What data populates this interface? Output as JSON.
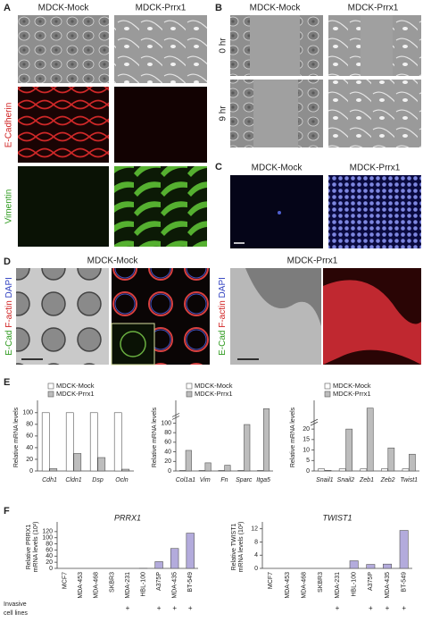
{
  "panels": {
    "A": {
      "label": "A",
      "columns": [
        "MDCK-Mock",
        "MDCK-Prrx1"
      ],
      "rows": [
        "E-Cadherin",
        "Vimentin"
      ]
    },
    "B": {
      "label": "B",
      "columns": [
        "MDCK-Mock",
        "MDCK-Prrx1"
      ],
      "rows": [
        "0 hr",
        "9 hr"
      ]
    },
    "C": {
      "label": "C",
      "columns": [
        "MDCK-Mock",
        "MDCK-Prrx1"
      ]
    },
    "D": {
      "label": "D",
      "columns": [
        "MDCK-Mock",
        "MDCK-Prrx1"
      ],
      "stain": [
        "E-Cad",
        "F-actin",
        "DAPI"
      ]
    },
    "E": {
      "label": "E"
    },
    "F": {
      "label": "F",
      "invasive_label": [
        "Invasive",
        "cell lines"
      ]
    }
  },
  "chart_data": [
    {
      "type": "bar",
      "ylabel": [
        "Relative mRNA levels"
      ],
      "legend": true,
      "italic_categories": true,
      "categories": [
        "Cdh1",
        "Cldn1",
        "Dsp",
        "Ocln"
      ],
      "series": [
        {
          "name": "MDCK-Mock",
          "color": "#ffffff",
          "values": [
            100,
            100,
            100,
            100
          ]
        },
        {
          "name": "MDCK-Prrx1",
          "color": "#bdbdbd",
          "values": [
            4,
            30,
            23,
            3
          ]
        }
      ],
      "ylim": [
        0,
        115
      ],
      "yticks": [
        0,
        20,
        40,
        60,
        80,
        100
      ]
    },
    {
      "type": "bar",
      "ylabel": [
        "Relative mRNA levels"
      ],
      "legend": true,
      "italic_categories": true,
      "axis_break": true,
      "categories": [
        "Col1a1",
        "Vim",
        "Fn",
        "Sparc",
        "Itga5"
      ],
      "series": [
        {
          "name": "MDCK-Mock",
          "color": "#ffffff",
          "values": [
            1,
            1,
            1,
            1,
            1
          ]
        },
        {
          "name": "MDCK-Prrx1",
          "color": "#bdbdbd",
          "values": [
            43,
            17,
            12,
            97,
            130
          ]
        }
      ],
      "ylim": [
        0,
        140
      ],
      "yticks": [
        0,
        20,
        40,
        60,
        80,
        100
      ]
    },
    {
      "type": "bar",
      "ylabel": [
        "Relative mRNA levels"
      ],
      "legend": true,
      "italic_categories": true,
      "axis_break": true,
      "categories": [
        "Snail1",
        "Snail2",
        "Zeb1",
        "Zeb2",
        "Twist1"
      ],
      "series": [
        {
          "name": "MDCK-Mock",
          "color": "#ffffff",
          "values": [
            1,
            1,
            1,
            1,
            1
          ]
        },
        {
          "name": "MDCK-Prrx1",
          "color": "#bdbdbd",
          "values": [
            0.3,
            20,
            30,
            11,
            8
          ]
        }
      ],
      "ylim": [
        0,
        32
      ],
      "yticks": [
        0,
        5,
        10,
        15,
        20
      ]
    },
    {
      "type": "bar",
      "title": "PRRX1",
      "ylabel": [
        "Relative PRRX1",
        "mRNA levels (10²)"
      ],
      "xlabel_rotation": -90,
      "categories": [
        "MCF7",
        "MDA-453",
        "MDA-468",
        "SKBR3",
        "MDA-231",
        "HBL-100",
        "A375P",
        "MDA-435",
        "BT-549"
      ],
      "series": [
        {
          "color": "#b3abdc",
          "values": [
            0,
            0,
            0,
            0,
            0,
            0.5,
            22,
            65,
            115
          ]
        }
      ],
      "invasive": [
        null,
        null,
        null,
        null,
        "+",
        null,
        "+",
        "+",
        "+"
      ],
      "ylim": [
        0,
        140
      ],
      "yticks": [
        0,
        20,
        40,
        60,
        80,
        100,
        120
      ]
    },
    {
      "type": "bar",
      "title": "TWIST1",
      "ylabel": [
        "Relative TWIST1",
        "mRNA levels (10²)"
      ],
      "xlabel_rotation": -90,
      "categories": [
        "MCF7",
        "MDA-453",
        "MDA-468",
        "SKBR3",
        "MDA-231",
        "HBL-100",
        "A375P",
        "MDA-435",
        "BT-549"
      ],
      "series": [
        {
          "color": "#b3abdc",
          "values": [
            0,
            0,
            0,
            0,
            0,
            2.3,
            1.2,
            1.3,
            11.5
          ]
        }
      ],
      "invasive": [
        null,
        null,
        null,
        null,
        "+",
        null,
        "+",
        "+",
        "+"
      ],
      "ylim": [
        0,
        13
      ],
      "yticks": [
        0,
        4,
        8,
        12
      ]
    }
  ]
}
